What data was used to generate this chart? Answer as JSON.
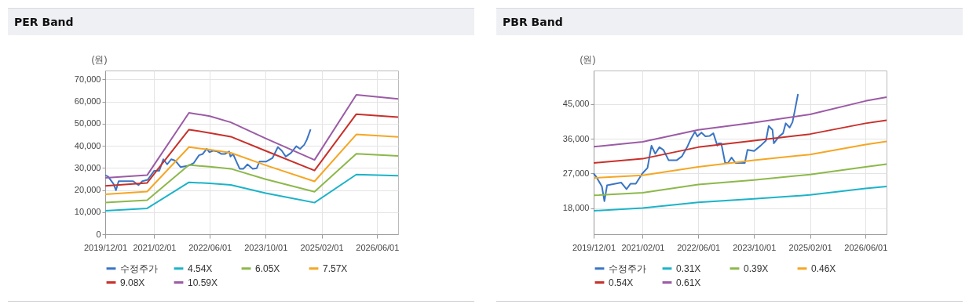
{
  "chart_data": [
    {
      "type": "line",
      "title": "PER Band",
      "ylabel": "(원)",
      "xlim": [
        "2019-12-01",
        "2026-12-01"
      ],
      "xticks": [
        {
          "value": "2019-12-01",
          "label": "2019/12/01"
        },
        {
          "value": "2021-02-01",
          "label": "2021/02/01"
        },
        {
          "value": "2022-06-01",
          "label": "2022/06/01"
        },
        {
          "value": "2023-10-01",
          "label": "2023/10/01"
        },
        {
          "value": "2025-02-01",
          "label": "2025/02/01"
        },
        {
          "value": "2026-06-01",
          "label": "2026/06/01"
        }
      ],
      "ylim": [
        0,
        74000
      ],
      "yticks": [
        {
          "value": 0,
          "label": "0"
        },
        {
          "value": 10000,
          "label": "10,000"
        },
        {
          "value": 20000,
          "label": "20,000"
        },
        {
          "value": 30000,
          "label": "30,000"
        },
        {
          "value": 40000,
          "label": "40,000"
        },
        {
          "value": 50000,
          "label": "50,000"
        },
        {
          "value": 60000,
          "label": "60,000"
        },
        {
          "value": 70000,
          "label": "70,000"
        }
      ],
      "grid": true,
      "legend": "bottom",
      "marker": "none",
      "line_style": "solid",
      "series": [
        {
          "name": "수정주가",
          "color": "#3a75c4",
          "x": [
            "2019-12-01",
            "2019-12-26",
            "2020-02-11",
            "2020-03-04",
            "2020-03-27",
            "2020-08-01",
            "2020-09-16",
            "2020-10-20",
            "2020-12-05",
            "2021-02-01",
            "2021-03-17",
            "2021-04-21",
            "2021-05-25",
            "2021-06-29",
            "2021-08-03",
            "2021-09-18",
            "2021-11-26",
            "2022-01-12",
            "2022-02-27",
            "2022-04-01",
            "2022-05-05",
            "2022-05-28",
            "2022-07-01",
            "2022-08-05",
            "2022-09-09",
            "2022-10-13",
            "2022-11-17",
            "2022-11-28",
            "2022-12-21",
            "2023-01-25",
            "2023-02-17",
            "2023-03-22",
            "2023-04-26",
            "2023-06-11",
            "2023-07-15",
            "2023-08-08",
            "2023-10-04",
            "2023-12-01",
            "2024-01-16",
            "2024-02-19",
            "2024-03-25",
            "2024-05-10",
            "2024-06-25",
            "2024-07-28",
            "2024-09-02",
            "2024-09-25",
            "2024-10-28"
          ],
          "values": [
            26700,
            26100,
            22800,
            19900,
            24000,
            24000,
            22200,
            24000,
            24600,
            28700,
            28700,
            33900,
            31600,
            33900,
            33300,
            30400,
            31000,
            32200,
            35700,
            36300,
            38600,
            37100,
            37800,
            37400,
            36300,
            36300,
            37400,
            35100,
            36300,
            32200,
            29600,
            29600,
            31600,
            29600,
            29800,
            32800,
            32800,
            34500,
            39400,
            37800,
            35100,
            36800,
            39800,
            38600,
            40400,
            42700,
            47400
          ]
        },
        {
          "name": "4.54X",
          "color": "#1cb3c8",
          "x": [
            "2019-12-01",
            "2020-12-01",
            "2021-12-01",
            "2022-06-01",
            "2022-12-01",
            "2023-10-01",
            "2024-12-01",
            "2025-12-01",
            "2026-12-01"
          ],
          "values": [
            10600,
            11700,
            23500,
            23000,
            22300,
            18600,
            14300,
            27000,
            26500
          ]
        },
        {
          "name": "6.05X",
          "color": "#8cb84a",
          "x": [
            "2019-12-01",
            "2020-12-01",
            "2021-12-01",
            "2022-06-01",
            "2022-12-01",
            "2023-10-01",
            "2024-12-01",
            "2025-12-01",
            "2026-12-01"
          ],
          "values": [
            14300,
            15400,
            31300,
            30500,
            29600,
            24900,
            19200,
            36400,
            35400
          ]
        },
        {
          "name": "7.57X",
          "color": "#f5a623",
          "x": [
            "2019-12-01",
            "2020-12-01",
            "2021-12-01",
            "2022-06-01",
            "2022-12-01",
            "2023-10-01",
            "2024-12-01",
            "2025-12-01",
            "2026-12-01"
          ],
          "values": [
            18100,
            19300,
            39400,
            38200,
            36800,
            31200,
            23900,
            45100,
            44000
          ]
        },
        {
          "name": "9.08X",
          "color": "#c8302a",
          "x": [
            "2019-12-01",
            "2020-12-01",
            "2021-12-01",
            "2022-06-01",
            "2022-12-01",
            "2023-10-01",
            "2024-12-01",
            "2025-12-01",
            "2026-12-01"
          ],
          "values": [
            21900,
            23200,
            47300,
            45800,
            44100,
            37700,
            28800,
            54300,
            52900
          ]
        },
        {
          "name": "10.59X",
          "color": "#9b5ba5",
          "x": [
            "2019-12-01",
            "2020-12-01",
            "2021-12-01",
            "2022-06-01",
            "2022-12-01",
            "2023-10-01",
            "2024-12-01",
            "2025-12-01",
            "2026-12-01"
          ],
          "values": [
            25500,
            26700,
            54900,
            53400,
            50600,
            43300,
            33600,
            63000,
            61200
          ]
        }
      ]
    },
    {
      "type": "line",
      "title": "PBR Band",
      "ylabel": "(원)",
      "xlim": [
        "2019-12-01",
        "2026-12-01"
      ],
      "xticks": [
        {
          "value": "2019-12-01",
          "label": "2019/12/01"
        },
        {
          "value": "2021-02-01",
          "label": "2021/02/01"
        },
        {
          "value": "2022-06-01",
          "label": "2022/06/01"
        },
        {
          "value": "2023-10-01",
          "label": "2023/10/01"
        },
        {
          "value": "2025-02-01",
          "label": "2025/02/01"
        },
        {
          "value": "2026-06-01",
          "label": "2026/06/01"
        }
      ],
      "ylim": [
        11200,
        53700
      ],
      "yticks": [
        {
          "value": 18000,
          "label": "18,000"
        },
        {
          "value": 27000,
          "label": "27,000"
        },
        {
          "value": 36000,
          "label": "36,000"
        },
        {
          "value": 45000,
          "label": "45,000"
        }
      ],
      "grid": true,
      "legend": "bottom",
      "marker": "none",
      "line_style": "solid",
      "series": [
        {
          "name": "수정주가",
          "color": "#3a75c4",
          "x": [
            "2019-12-01",
            "2019-12-26",
            "2020-02-11",
            "2020-03-04",
            "2020-03-27",
            "2020-07-29",
            "2020-09-13",
            "2020-10-17",
            "2020-12-03",
            "2021-01-30",
            "2021-03-15",
            "2021-04-19",
            "2021-05-22",
            "2021-06-27",
            "2021-08-01",
            "2021-09-16",
            "2021-11-24",
            "2022-01-09",
            "2022-02-24",
            "2022-03-28",
            "2022-05-03",
            "2022-05-25",
            "2022-06-29",
            "2022-08-03",
            "2022-09-07",
            "2022-10-11",
            "2022-11-15",
            "2022-11-26",
            "2022-12-19",
            "2023-01-22",
            "2023-02-15",
            "2023-03-19",
            "2023-04-23",
            "2023-06-08",
            "2023-07-13",
            "2023-08-05",
            "2023-10-02",
            "2023-11-28",
            "2024-01-13",
            "2024-02-06",
            "2024-03-10",
            "2024-03-22",
            "2024-05-07",
            "2024-06-10",
            "2024-07-04",
            "2024-08-07",
            "2024-09-01",
            "2024-09-22",
            "2024-10-19"
          ],
          "values": [
            27000,
            26000,
            23600,
            19800,
            23900,
            24600,
            22900,
            24300,
            24300,
            27000,
            28400,
            34200,
            32100,
            33800,
            33100,
            30400,
            30400,
            31400,
            33800,
            35900,
            37800,
            36600,
            37600,
            36600,
            36700,
            37400,
            34200,
            34800,
            34800,
            29700,
            29700,
            31100,
            29700,
            29700,
            29700,
            33100,
            32800,
            34200,
            35500,
            39300,
            38300,
            34800,
            36600,
            37400,
            40000,
            38900,
            40300,
            43400,
            47600
          ]
        },
        {
          "name": "0.31X",
          "color": "#1cb3c8",
          "x": [
            "2019-12-01",
            "2021-02-01",
            "2022-06-01",
            "2023-10-01",
            "2025-02-01",
            "2026-06-01",
            "2026-12-01"
          ],
          "values": [
            17300,
            18000,
            19500,
            20400,
            21400,
            23100,
            23600
          ]
        },
        {
          "name": "0.39X",
          "color": "#8cb84a",
          "x": [
            "2019-12-01",
            "2021-02-01",
            "2022-06-01",
            "2023-10-01",
            "2025-02-01",
            "2026-06-01",
            "2026-12-01"
          ],
          "values": [
            21300,
            22000,
            24100,
            25300,
            26700,
            28700,
            29400
          ]
        },
        {
          "name": "0.46X",
          "color": "#f5a623",
          "x": [
            "2019-12-01",
            "2021-02-01",
            "2022-06-01",
            "2023-10-01",
            "2025-02-01",
            "2026-06-01",
            "2026-12-01"
          ],
          "values": [
            25800,
            26500,
            28700,
            30400,
            31900,
            34500,
            35300
          ]
        },
        {
          "name": "0.54X",
          "color": "#c8302a",
          "x": [
            "2019-12-01",
            "2021-02-01",
            "2022-06-01",
            "2023-10-01",
            "2025-02-01",
            "2026-06-01",
            "2026-12-01"
          ],
          "values": [
            29700,
            30800,
            33800,
            35500,
            37200,
            40000,
            40800
          ]
        },
        {
          "name": "0.61X",
          "color": "#9b5ba5",
          "x": [
            "2019-12-01",
            "2021-02-01",
            "2022-06-01",
            "2023-10-01",
            "2025-02-01",
            "2026-06-01",
            "2026-12-01"
          ],
          "values": [
            33900,
            35200,
            38300,
            40200,
            42300,
            45800,
            46800
          ]
        }
      ]
    }
  ]
}
